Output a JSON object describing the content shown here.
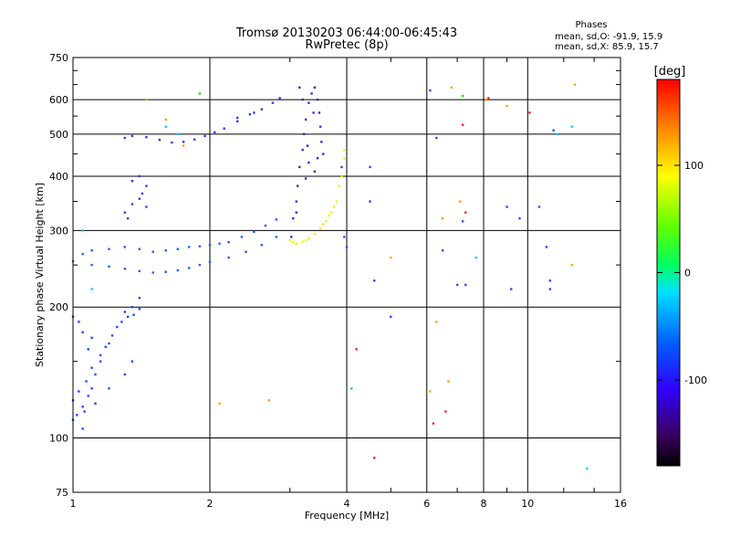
{
  "chart_data": {
    "type": "scatter",
    "title": "Tromsø 20130203 06:44:00-06:45:43",
    "subtitle": "RwPretec (8p)",
    "stats": {
      "heading": "Phases",
      "line1": "mean, sd,O: -91.9, 15.9",
      "line2": "mean, sd,X:  85.9, 15.7"
    },
    "xlabel": "Frequency [MHz]",
    "ylabel": "Stationary phase Virtual Height [km]",
    "xscale": "log",
    "yscale": "log",
    "xlim": [
      1,
      16
    ],
    "ylim": [
      75,
      750
    ],
    "xticks": [
      1,
      2,
      4,
      6,
      8,
      10,
      16
    ],
    "xtick_labels": [
      "1",
      "2",
      "4",
      "6",
      "8",
      "10",
      "16"
    ],
    "yticks": [
      75,
      100,
      200,
      300,
      400,
      500,
      600,
      750
    ],
    "ytick_labels": [
      "75",
      "100",
      "200",
      "300",
      "400",
      "500",
      "600",
      "750"
    ],
    "grid": true,
    "colorbar": {
      "label": "[deg]",
      "range": [
        -180,
        180
      ],
      "ticks": [
        100,
        0,
        -100
      ],
      "tick_labels": [
        "100",
        "0",
        "-100"
      ]
    },
    "series": [
      {
        "phase": -100,
        "color": "#1a4cff",
        "points": [
          [
            1.0,
            110
          ],
          [
            1.02,
            113
          ],
          [
            1.05,
            118
          ],
          [
            1.08,
            125
          ],
          [
            1.1,
            130
          ],
          [
            1.12,
            140
          ],
          [
            1.15,
            150
          ],
          [
            1.2,
            165
          ],
          [
            1.25,
            180
          ],
          [
            1.3,
            195
          ],
          [
            1.35,
            200
          ],
          [
            1.4,
            210
          ],
          [
            1.0,
            122
          ],
          [
            1.03,
            128
          ],
          [
            1.07,
            135
          ],
          [
            1.1,
            145
          ],
          [
            1.15,
            155
          ],
          [
            1.18,
            162
          ],
          [
            1.22,
            172
          ],
          [
            1.28,
            185
          ],
          [
            1.32,
            190
          ],
          [
            1.36,
            192
          ],
          [
            1.4,
            198
          ],
          [
            1.05,
            105
          ],
          [
            1.06,
            115
          ],
          [
            1.12,
            120
          ],
          [
            1.2,
            130
          ],
          [
            1.3,
            140
          ],
          [
            1.35,
            150
          ],
          [
            1.0,
            190
          ],
          [
            1.03,
            185
          ],
          [
            1.05,
            175
          ],
          [
            1.08,
            160
          ],
          [
            1.1,
            170
          ]
        ]
      },
      {
        "phase": -95,
        "color": "#2060ff",
        "points": [
          [
            1.0,
            255
          ],
          [
            1.05,
            265
          ],
          [
            1.1,
            270
          ],
          [
            1.2,
            272
          ],
          [
            1.3,
            275
          ],
          [
            1.4,
            272
          ],
          [
            1.5,
            268
          ],
          [
            1.6,
            270
          ],
          [
            1.7,
            272
          ],
          [
            1.8,
            275
          ],
          [
            1.9,
            276
          ],
          [
            2.0,
            278
          ],
          [
            2.1,
            280
          ],
          [
            2.2,
            282
          ],
          [
            2.35,
            290
          ],
          [
            2.5,
            298
          ],
          [
            2.65,
            308
          ],
          [
            2.8,
            318
          ],
          [
            1.1,
            250
          ],
          [
            1.2,
            248
          ],
          [
            1.3,
            245
          ],
          [
            1.4,
            242
          ],
          [
            1.5,
            240
          ],
          [
            1.6,
            241
          ],
          [
            1.7,
            243
          ],
          [
            1.8,
            246
          ],
          [
            1.9,
            250
          ],
          [
            2.0,
            254
          ],
          [
            2.2,
            260
          ],
          [
            2.4,
            268
          ],
          [
            2.6,
            278
          ],
          [
            2.8,
            290
          ]
        ]
      },
      {
        "phase": -90,
        "color": "#2a40e8",
        "points": [
          [
            1.3,
            330
          ],
          [
            1.35,
            345
          ],
          [
            1.4,
            355
          ],
          [
            1.42,
            365
          ],
          [
            1.45,
            380
          ],
          [
            1.35,
            390
          ],
          [
            1.4,
            400
          ],
          [
            1.45,
            340
          ],
          [
            1.32,
            320
          ],
          [
            1.3,
            490
          ],
          [
            1.35,
            495
          ],
          [
            1.45,
            492
          ],
          [
            1.55,
            485
          ],
          [
            1.65,
            478
          ],
          [
            1.75,
            480
          ],
          [
            1.85,
            486
          ],
          [
            1.95,
            495
          ],
          [
            2.05,
            505
          ],
          [
            2.15,
            515
          ],
          [
            2.3,
            535
          ],
          [
            2.45,
            555
          ],
          [
            2.6,
            570
          ],
          [
            2.75,
            590
          ],
          [
            2.85,
            605
          ],
          [
            2.3,
            545
          ],
          [
            2.5,
            560
          ]
        ]
      },
      {
        "phase": -110,
        "color": "#5020d0",
        "points": [
          [
            3.02,
            290
          ],
          [
            3.05,
            320
          ],
          [
            3.1,
            350
          ],
          [
            3.12,
            380
          ],
          [
            3.15,
            420
          ],
          [
            3.2,
            460
          ],
          [
            3.22,
            500
          ],
          [
            3.25,
            540
          ],
          [
            3.3,
            590
          ],
          [
            3.35,
            620
          ],
          [
            3.4,
            640
          ],
          [
            3.45,
            600
          ],
          [
            3.48,
            560
          ],
          [
            3.5,
            520
          ],
          [
            3.52,
            480
          ],
          [
            3.55,
            450
          ],
          [
            3.3,
            430
          ],
          [
            3.25,
            395
          ],
          [
            3.4,
            410
          ],
          [
            3.45,
            440
          ],
          [
            3.1,
            330
          ],
          [
            3.2,
            600
          ],
          [
            3.15,
            640
          ],
          [
            3.28,
            470
          ],
          [
            3.38,
            560
          ]
        ]
      },
      {
        "phase": 100,
        "color": "#f0f000",
        "points": [
          [
            3.0,
            285
          ],
          [
            3.05,
            282
          ],
          [
            3.1,
            280
          ],
          [
            3.2,
            283
          ],
          [
            3.3,
            288
          ],
          [
            3.4,
            295
          ],
          [
            3.5,
            303
          ],
          [
            3.6,
            315
          ],
          [
            3.7,
            330
          ],
          [
            3.8,
            350
          ],
          [
            3.85,
            380
          ],
          [
            3.9,
            420
          ],
          [
            3.95,
            460
          ],
          [
            3.55,
            310
          ],
          [
            3.65,
            325
          ],
          [
            3.75,
            340
          ],
          [
            3.9,
            400
          ],
          [
            3.95,
            440
          ],
          [
            3.25,
            285
          ]
        ]
      },
      {
        "phase": 60,
        "color": "#ffa000",
        "points": [
          [
            1.45,
            600
          ],
          [
            1.6,
            540
          ],
          [
            1.75,
            470
          ],
          [
            2.1,
            120
          ],
          [
            2.7,
            122
          ],
          [
            5.0,
            260
          ],
          [
            6.1,
            128
          ],
          [
            6.3,
            185
          ],
          [
            6.5,
            320
          ],
          [
            6.7,
            135
          ],
          [
            6.8,
            640
          ],
          [
            7.1,
            350
          ],
          [
            8.1,
            600
          ],
          [
            9.0,
            580
          ],
          [
            12.5,
            250
          ],
          [
            12.7,
            650
          ]
        ]
      },
      {
        "phase": 130,
        "color": "#ff2020",
        "points": [
          [
            6.2,
            108
          ],
          [
            6.6,
            115
          ],
          [
            7.2,
            525
          ],
          [
            7.3,
            330
          ],
          [
            8.2,
            605
          ],
          [
            10.1,
            560
          ],
          [
            4.6,
            90
          ],
          [
            4.2,
            160
          ]
        ]
      },
      {
        "phase": 0,
        "color": "#20e020",
        "points": [
          [
            1.9,
            620
          ],
          [
            4.1,
            130
          ],
          [
            7.2,
            612
          ]
        ]
      },
      {
        "phase": -50,
        "color": "#10c8ff",
        "points": [
          [
            1.6,
            520
          ],
          [
            1.7,
            500
          ],
          [
            1.05,
            300
          ],
          [
            1.1,
            220
          ],
          [
            13.5,
            85
          ],
          [
            12.5,
            520
          ],
          [
            11.6,
            500
          ],
          [
            7.7,
            260
          ]
        ]
      },
      {
        "phase": -100,
        "color": "#2050ff",
        "points": [
          [
            3.9,
            420
          ],
          [
            3.95,
            290
          ],
          [
            4.0,
            275
          ],
          [
            4.5,
            350
          ],
          [
            4.5,
            420
          ],
          [
            4.6,
            230
          ],
          [
            5.0,
            190
          ],
          [
            6.1,
            630
          ],
          [
            6.3,
            490
          ],
          [
            6.5,
            270
          ],
          [
            7.0,
            225
          ],
          [
            7.2,
            315
          ],
          [
            7.3,
            225
          ],
          [
            9.0,
            340
          ],
          [
            9.2,
            220
          ],
          [
            9.6,
            320
          ],
          [
            10.6,
            340
          ],
          [
            11.0,
            275
          ],
          [
            11.2,
            230
          ],
          [
            11.2,
            220
          ],
          [
            11.4,
            510
          ]
        ]
      }
    ]
  }
}
